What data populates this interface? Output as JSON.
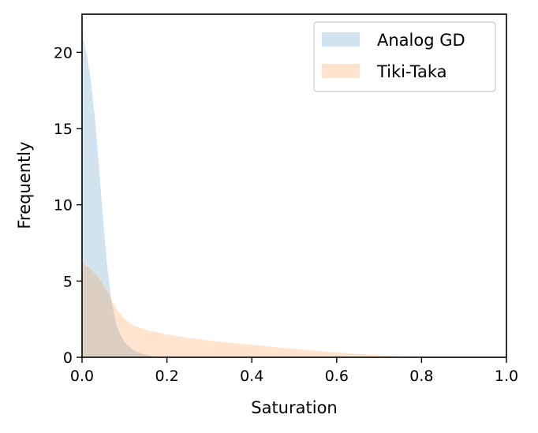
{
  "chart_data": {
    "type": "histogram",
    "xlabel": "Saturation",
    "ylabel": "Frequently",
    "xlim": [
      0.0,
      1.0
    ],
    "ylim": [
      0,
      22.5
    ],
    "x_ticks": [
      "0.0",
      "0.2",
      "0.4",
      "0.6",
      "0.8",
      "1.0"
    ],
    "y_ticks": [
      "0",
      "5",
      "10",
      "15",
      "20"
    ],
    "grid": false,
    "legend_position": "top-right",
    "series": [
      {
        "name": "Analog GD",
        "color": "#1f77b4",
        "opacity": 0.2,
        "x": [
          0.0,
          0.01,
          0.02,
          0.03,
          0.04,
          0.05,
          0.06,
          0.07,
          0.08,
          0.09,
          0.1,
          0.12,
          0.14,
          0.16,
          0.18,
          0.2
        ],
        "y": [
          21.3,
          20.0,
          18.3,
          15.8,
          12.5,
          9.0,
          5.8,
          3.6,
          2.2,
          1.5,
          1.0,
          0.5,
          0.25,
          0.1,
          0.03,
          0.0
        ]
      },
      {
        "name": "Tiki-Taka",
        "color": "#ff7f0e",
        "opacity": 0.2,
        "x": [
          0.0,
          0.02,
          0.04,
          0.06,
          0.08,
          0.1,
          0.12,
          0.15,
          0.2,
          0.25,
          0.3,
          0.35,
          0.4,
          0.45,
          0.5,
          0.55,
          0.6,
          0.65,
          0.7,
          0.75,
          0.8,
          0.82
        ],
        "y": [
          6.2,
          5.8,
          5.2,
          4.3,
          3.2,
          2.5,
          2.1,
          1.8,
          1.5,
          1.28,
          1.1,
          0.95,
          0.82,
          0.68,
          0.55,
          0.43,
          0.32,
          0.22,
          0.13,
          0.06,
          0.02,
          0.0
        ]
      }
    ]
  }
}
